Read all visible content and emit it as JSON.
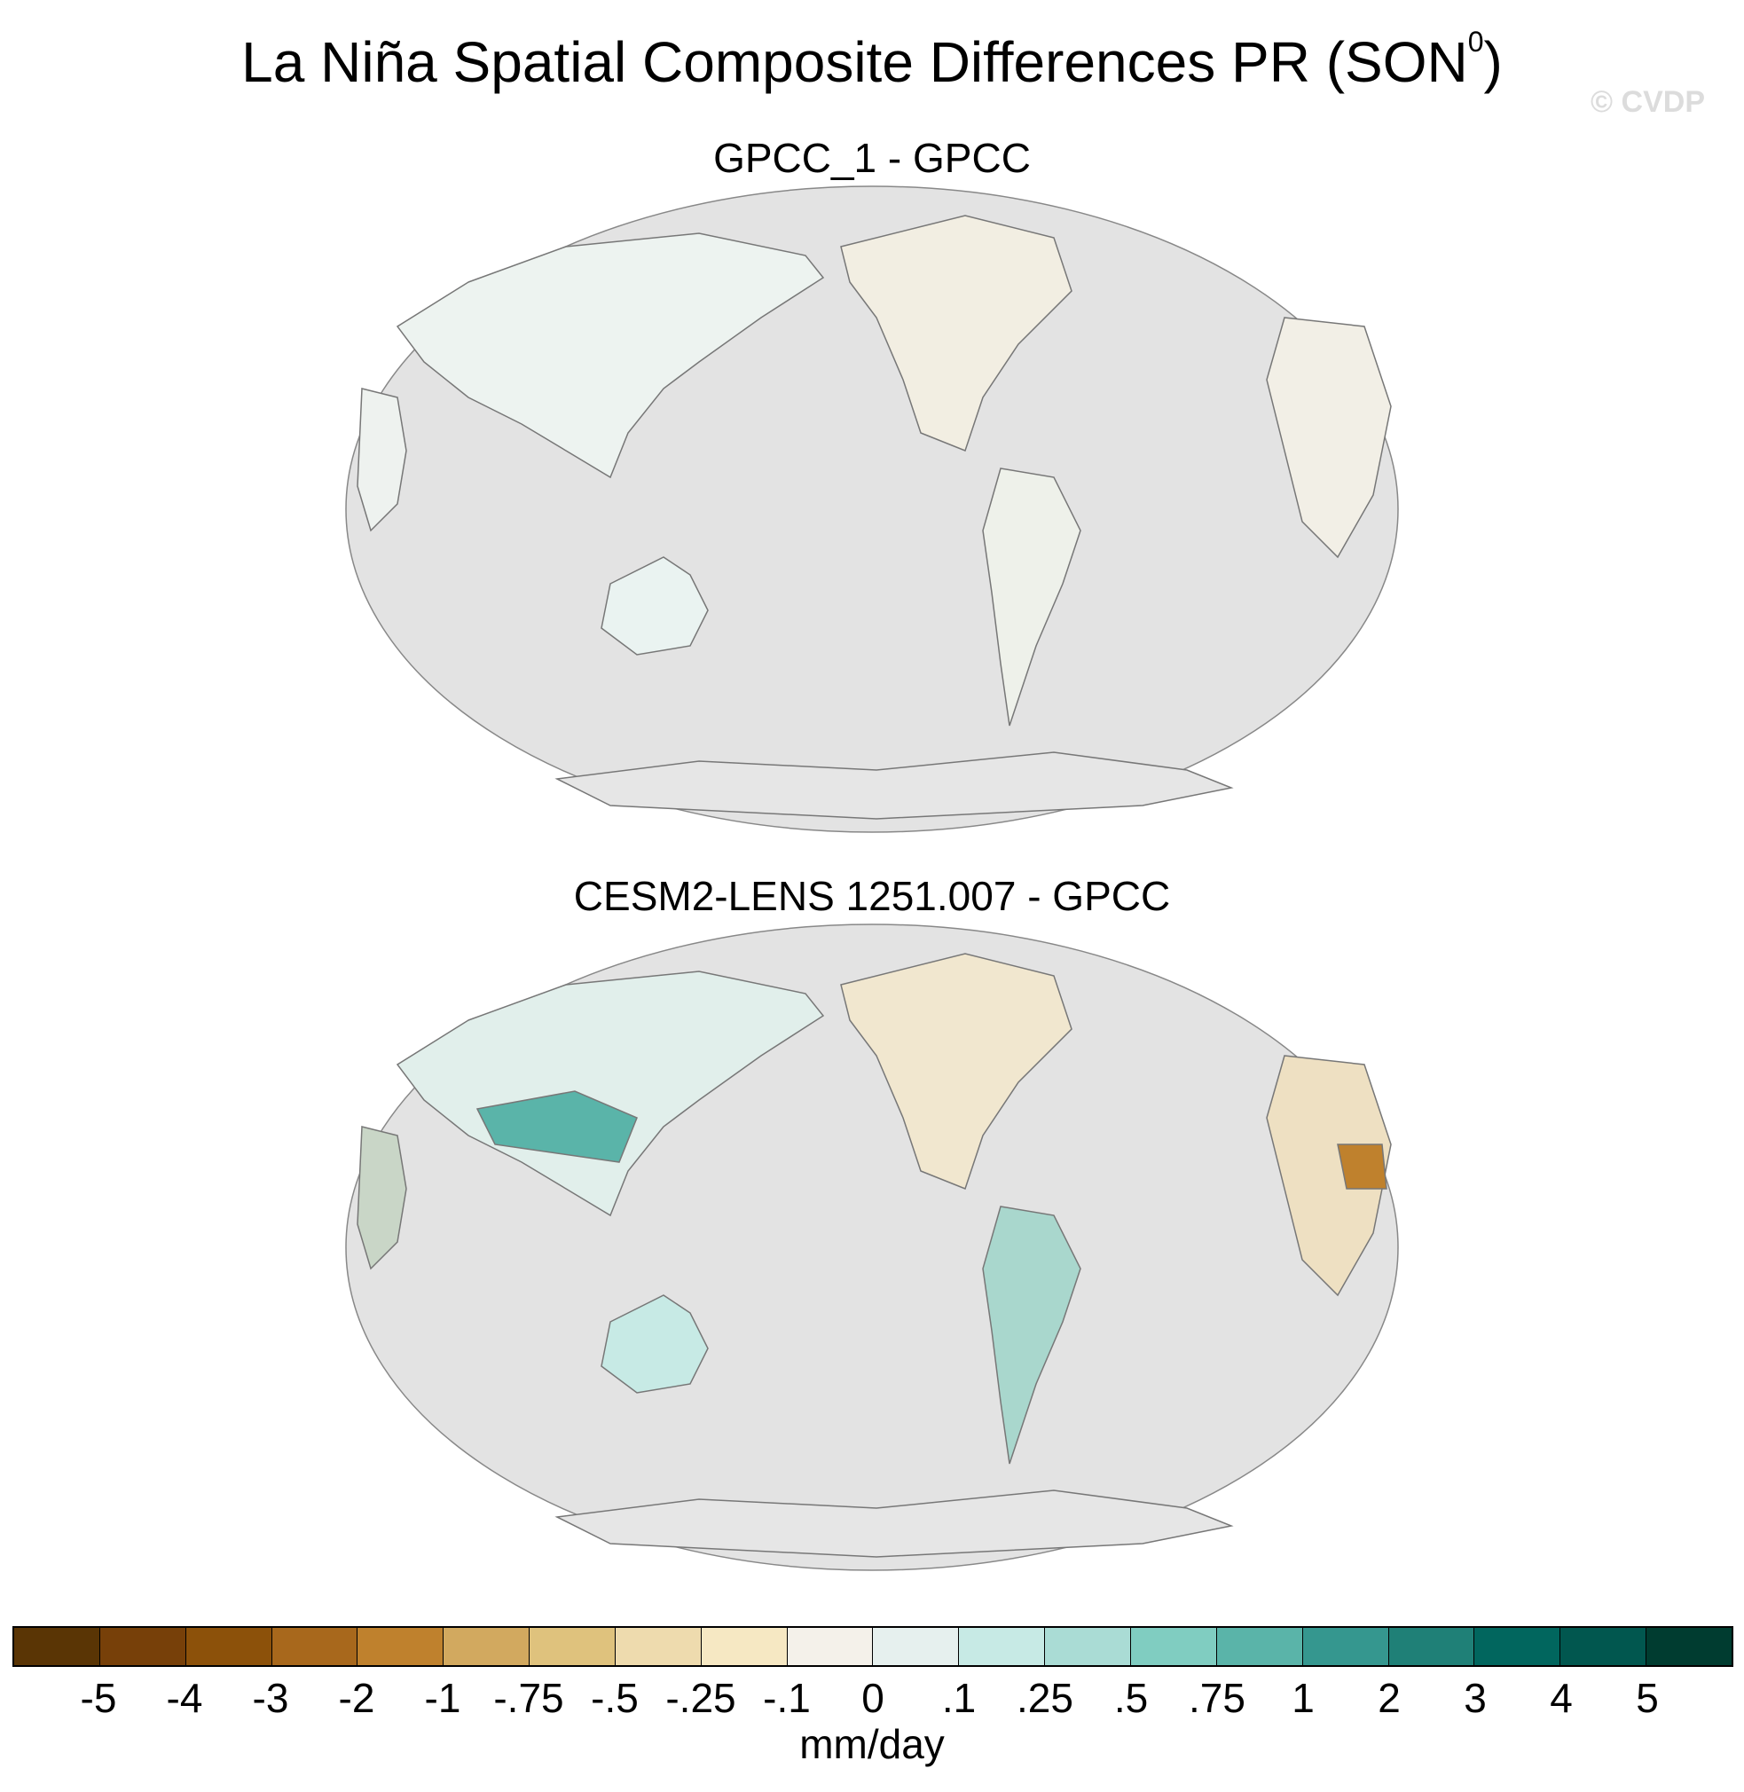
{
  "title": {
    "main": "La Niña Spatial Composite Differences PR (SON",
    "superscript": "0",
    "close": ")"
  },
  "watermark": "© CVDP",
  "panels": [
    {
      "title": "GPCC_1 - GPCC"
    },
    {
      "title": "CESM2-LENS 1251.007 - GPCC"
    }
  ],
  "colorbar": {
    "colors": [
      "#5a3505",
      "#774009",
      "#8c510a",
      "#a8681c",
      "#bf812d",
      "#d2a95f",
      "#dfc27d",
      "#eedbae",
      "#f6e8c3",
      "#f4f1ea",
      "#e6f0ee",
      "#c7eae5",
      "#aadcd5",
      "#80cdc1",
      "#5ab4a9",
      "#35978f",
      "#1f8077",
      "#01665e",
      "#01574f",
      "#003c30"
    ],
    "labels": [
      "-5",
      "-4",
      "-3",
      "-2",
      "-1",
      "-.75",
      "-.5",
      "-.25",
      "-.1",
      "0",
      ".1",
      ".25",
      ".5",
      ".75",
      "1",
      "2",
      "3",
      "4",
      "5"
    ],
    "units": "mm/day"
  },
  "map_style": {
    "background": "#e3e3e3",
    "coastline": "#777777"
  }
}
